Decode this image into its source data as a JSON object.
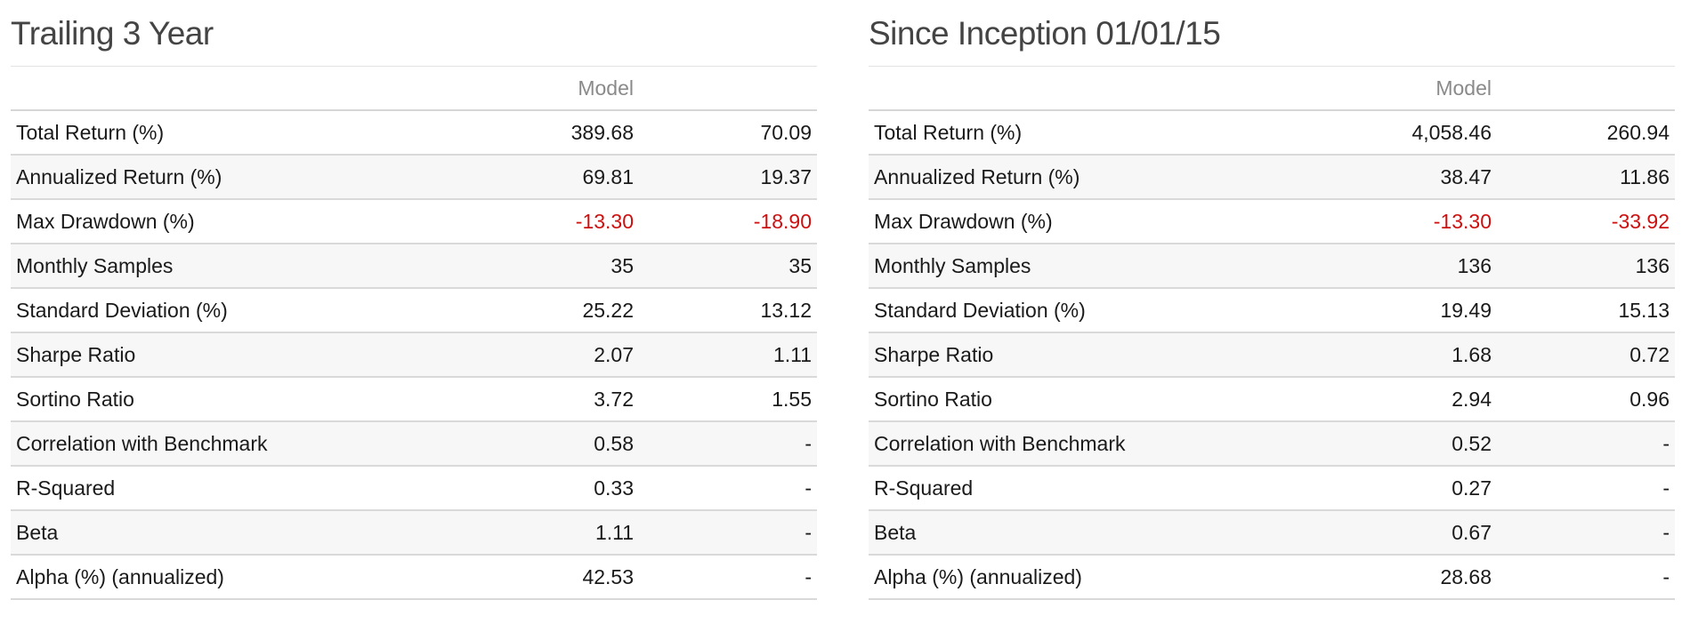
{
  "panels": [
    {
      "title": "Trailing 3 Year",
      "headers": [
        "",
        "Model",
        ""
      ],
      "rows": [
        {
          "label": "Total Return (%)",
          "model": "389.68",
          "bench": "70.09",
          "negative": false
        },
        {
          "label": "Annualized Return (%)",
          "model": "69.81",
          "bench": "19.37",
          "negative": false
        },
        {
          "label": "Max Drawdown (%)",
          "model": "-13.30",
          "bench": "-18.90",
          "negative": true
        },
        {
          "label": "Monthly Samples",
          "model": "35",
          "bench": "35",
          "negative": false
        },
        {
          "label": "Standard Deviation (%)",
          "model": "25.22",
          "bench": "13.12",
          "negative": false
        },
        {
          "label": "Sharpe Ratio",
          "model": "2.07",
          "bench": "1.11",
          "negative": false
        },
        {
          "label": "Sortino Ratio",
          "model": "3.72",
          "bench": "1.55",
          "negative": false
        },
        {
          "label": "Correlation with Benchmark",
          "model": "0.58",
          "bench": "-",
          "negative": false
        },
        {
          "label": "R-Squared",
          "model": "0.33",
          "bench": "-",
          "negative": false
        },
        {
          "label": "Beta",
          "model": "1.11",
          "bench": "-",
          "negative": false
        },
        {
          "label": "Alpha (%) (annualized)",
          "model": "42.53",
          "bench": "-",
          "negative": false
        }
      ]
    },
    {
      "title": "Since Inception 01/01/15",
      "headers": [
        "",
        "Model",
        ""
      ],
      "rows": [
        {
          "label": "Total Return (%)",
          "model": "4,058.46",
          "bench": "260.94",
          "negative": false
        },
        {
          "label": "Annualized Return (%)",
          "model": "38.47",
          "bench": "11.86",
          "negative": false
        },
        {
          "label": "Max Drawdown (%)",
          "model": "-13.30",
          "bench": "-33.92",
          "negative": true
        },
        {
          "label": "Monthly Samples",
          "model": "136",
          "bench": "136",
          "negative": false
        },
        {
          "label": "Standard Deviation (%)",
          "model": "19.49",
          "bench": "15.13",
          "negative": false
        },
        {
          "label": "Sharpe Ratio",
          "model": "1.68",
          "bench": "0.72",
          "negative": false
        },
        {
          "label": "Sortino Ratio",
          "model": "2.94",
          "bench": "0.96",
          "negative": false
        },
        {
          "label": "Correlation with Benchmark",
          "model": "0.52",
          "bench": "-",
          "negative": false
        },
        {
          "label": "R-Squared",
          "model": "0.27",
          "bench": "-",
          "negative": false
        },
        {
          "label": "Beta",
          "model": "0.67",
          "bench": "-",
          "negative": false
        },
        {
          "label": "Alpha (%) (annualized)",
          "model": "28.68",
          "bench": "-",
          "negative": false
        }
      ]
    }
  ],
  "colors": {
    "negative": "#cc1111",
    "header_text": "#8a8a8a",
    "title_text": "#444444",
    "row_stripe": "#f7f7f7"
  }
}
